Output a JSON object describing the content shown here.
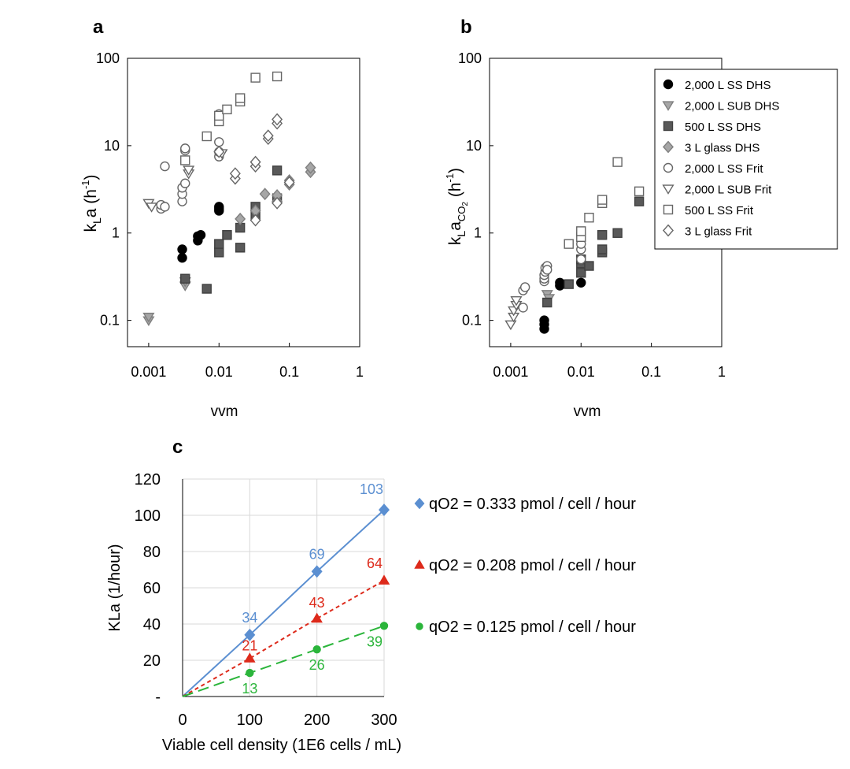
{
  "colors": {
    "axis": "#000000",
    "grid": "#d9d9d9",
    "blue": "#5b8fd1",
    "red": "#dd2a1b",
    "green": "#2bb53b",
    "filled_black": "#000000",
    "filled_dark": "#595959",
    "filled_light": "#a6a6a6",
    "open_marker": "#666666"
  },
  "chart_data": [
    {
      "panel": "a",
      "type": "scatter",
      "title": "a",
      "xlabel": "vvm",
      "ylabel_main": "k",
      "ylabel_sub": "L",
      "ylabel_rest": "a (h",
      "ylabel_sup": "-1",
      "ylabel_end": ")",
      "xscale": "log",
      "yscale": "log",
      "xlim": [
        0.0005,
        1
      ],
      "ylim": [
        0.05,
        100
      ],
      "xticks": [
        0.001,
        0.01,
        0.1,
        1
      ],
      "xtick_labels": [
        "0.001",
        "0.01",
        "0.1",
        "1"
      ],
      "yticks": [
        0.1,
        1,
        10,
        100
      ],
      "ytick_labels": [
        "0.1",
        "1",
        "10",
        "100"
      ],
      "series": [
        {
          "name": "2,000 L SS DHS",
          "marker": "circle",
          "fill": "black",
          "x": [
            0.003,
            0.003,
            0.005,
            0.005,
            0.01,
            0.01,
            0.01,
            0.0055
          ],
          "y": [
            0.52,
            0.65,
            0.82,
            0.92,
            1.8,
            2.0,
            1.9,
            0.95
          ]
        },
        {
          "name": "2,000 L SUB DHS",
          "marker": "triangle",
          "fill": "light",
          "x": [
            0.001,
            0.001,
            0.0033,
            0.0033
          ],
          "y": [
            0.1,
            0.11,
            0.25,
            0.28
          ]
        },
        {
          "name": "500 L SS DHS",
          "marker": "square",
          "fill": "dark",
          "x": [
            0.0033,
            0.0067,
            0.01,
            0.01,
            0.013,
            0.02,
            0.02,
            0.033,
            0.033,
            0.067,
            0.067
          ],
          "y": [
            0.3,
            0.23,
            0.6,
            0.75,
            0.95,
            0.68,
            1.15,
            1.6,
            2.0,
            2.5,
            5.2
          ]
        },
        {
          "name": "3 L glass DHS",
          "marker": "diamond",
          "fill": "light",
          "x": [
            0.02,
            0.033,
            0.045,
            0.067,
            0.067,
            0.1,
            0.1,
            0.2,
            0.2
          ],
          "y": [
            1.45,
            1.8,
            2.8,
            2.3,
            2.7,
            3.6,
            4.0,
            5.0,
            5.6
          ]
        },
        {
          "name": "2,000 L SS Frit",
          "marker": "circle",
          "fill": "open",
          "x": [
            0.0015,
            0.0015,
            0.0017,
            0.0017,
            0.003,
            0.003,
            0.003,
            0.0033,
            0.0033,
            0.0033,
            0.01,
            0.01,
            0.01,
            0.01,
            0.01
          ],
          "y": [
            1.9,
            2.1,
            2.0,
            5.8,
            2.3,
            2.8,
            3.3,
            3.7,
            8.8,
            9.3,
            7.5,
            8.5,
            11,
            21,
            23
          ]
        },
        {
          "name": "2,000 L SUB Frit",
          "marker": "triangle",
          "fill": "open",
          "x": [
            0.001,
            0.0011,
            0.0037,
            0.0037,
            0.011
          ],
          "y": [
            2.2,
            2.0,
            4.8,
            5.3,
            8.2
          ]
        },
        {
          "name": "500 L SS Frit",
          "marker": "square",
          "fill": "open",
          "x": [
            0.0033,
            0.0067,
            0.01,
            0.01,
            0.013,
            0.02,
            0.02,
            0.033,
            0.067
          ],
          "y": [
            6.8,
            12.8,
            19,
            22,
            26,
            32,
            35,
            60,
            62
          ]
        },
        {
          "name": "3 L glass Frit",
          "marker": "diamond",
          "fill": "open",
          "x": [
            0.01,
            0.017,
            0.017,
            0.033,
            0.033,
            0.05,
            0.05,
            0.067,
            0.067,
            0.033,
            0.067,
            0.1
          ],
          "y": [
            8.5,
            4.2,
            4.8,
            5.8,
            6.5,
            12,
            13,
            18,
            20,
            1.4,
            2.2,
            3.8
          ]
        }
      ]
    },
    {
      "panel": "b",
      "type": "scatter",
      "title": "b",
      "xlabel": "vvm",
      "ylabel_main": "k",
      "ylabel_sub": "L",
      "ylabel_rest": "a",
      "ylabel_sub2": "CO",
      "ylabel_sub3": "2",
      "ylabel_paren": " (h",
      "ylabel_sup": "-1",
      "ylabel_end": ")",
      "xscale": "log",
      "yscale": "log",
      "xlim": [
        0.0005,
        1
      ],
      "ylim": [
        0.05,
        100
      ],
      "xticks": [
        0.001,
        0.01,
        0.1,
        1
      ],
      "xtick_labels": [
        "0.001",
        "0.01",
        "0.1",
        "1"
      ],
      "yticks": [
        0.1,
        1,
        10,
        100
      ],
      "ytick_labels": [
        "0.1",
        "1",
        "10",
        "100"
      ],
      "legend_position": "top-right",
      "series": [
        {
          "name": "2,000 L SS DHS",
          "marker": "circle",
          "fill": "black",
          "x": [
            0.003,
            0.003,
            0.003,
            0.005,
            0.005,
            0.01
          ],
          "y": [
            0.08,
            0.09,
            0.1,
            0.25,
            0.27,
            0.27
          ]
        },
        {
          "name": "2,000 L SUB DHS",
          "marker": "triangle",
          "fill": "light",
          "x": [
            0.0033,
            0.0035
          ],
          "y": [
            0.2,
            0.18
          ]
        },
        {
          "name": "500 L SS DHS",
          "marker": "square",
          "fill": "dark",
          "x": [
            0.0033,
            0.0067,
            0.01,
            0.01,
            0.01,
            0.013,
            0.02,
            0.02,
            0.02,
            0.033,
            0.067
          ],
          "y": [
            0.16,
            0.26,
            0.35,
            0.45,
            0.5,
            0.42,
            0.6,
            0.65,
            0.95,
            1.0,
            2.3
          ]
        },
        {
          "name": "3 L glass DHS",
          "marker": "diamond",
          "fill": "light",
          "x": [],
          "y": []
        },
        {
          "name": "2,000 L SS Frit",
          "marker": "circle",
          "fill": "open",
          "x": [
            0.0015,
            0.0015,
            0.0016,
            0.003,
            0.003,
            0.003,
            0.0031,
            0.0031,
            0.0033,
            0.0033,
            0.01,
            0.01,
            0.01
          ],
          "y": [
            0.14,
            0.22,
            0.24,
            0.28,
            0.3,
            0.33,
            0.36,
            0.4,
            0.42,
            0.38,
            0.5,
            0.65,
            0.75
          ]
        },
        {
          "name": "2,000 L SUB Frit",
          "marker": "triangle",
          "fill": "open",
          "x": [
            0.001,
            0.0011,
            0.0011,
            0.0012,
            0.0012
          ],
          "y": [
            0.09,
            0.11,
            0.13,
            0.15,
            0.17
          ]
        },
        {
          "name": "500 L SS Frit",
          "marker": "square",
          "fill": "open",
          "x": [
            0.0067,
            0.01,
            0.01,
            0.013,
            0.02,
            0.02,
            0.033,
            0.067
          ],
          "y": [
            0.75,
            0.9,
            1.05,
            1.5,
            2.2,
            2.4,
            6.5,
            3.0
          ]
        },
        {
          "name": "3 L glass Frit",
          "marker": "diamond",
          "fill": "open",
          "x": [],
          "y": []
        }
      ]
    },
    {
      "panel": "c",
      "type": "line",
      "title": "c",
      "xlabel": "Viable cell density (1E6 cells / mL)",
      "ylabel": "KLa (1/hour)",
      "xlim": [
        0,
        300
      ],
      "ylim": [
        0,
        120
      ],
      "xticks": [
        0,
        100,
        200,
        300
      ],
      "xtick_labels": [
        "0",
        "100",
        "200",
        "300"
      ],
      "yticks": [
        0,
        20,
        40,
        60,
        80,
        100,
        120
      ],
      "ytick_labels": [
        "-",
        "20",
        "40",
        "60",
        "80",
        "100",
        "120"
      ],
      "grid": true,
      "x": [
        0,
        100,
        200,
        300
      ],
      "series": [
        {
          "name": "qO2 = 0.333 pmol / cell / hour",
          "marker": "diamond",
          "color": "blue",
          "dash": "solid",
          "values": [
            0,
            34,
            69,
            103
          ],
          "labels": [
            "",
            "34",
            "69",
            "103"
          ]
        },
        {
          "name": "qO2 = 0.208 pmol / cell / hour",
          "marker": "triangle",
          "color": "red",
          "dash": "short",
          "values": [
            0,
            21,
            43,
            64
          ],
          "labels": [
            "",
            "21",
            "43",
            "64"
          ]
        },
        {
          "name": "qO2 = 0.125 pmol / cell / hour",
          "marker": "circle",
          "color": "green",
          "dash": "long",
          "values": [
            0,
            13,
            26,
            39
          ],
          "labels": [
            "",
            "13",
            "26",
            "39"
          ]
        }
      ]
    }
  ]
}
